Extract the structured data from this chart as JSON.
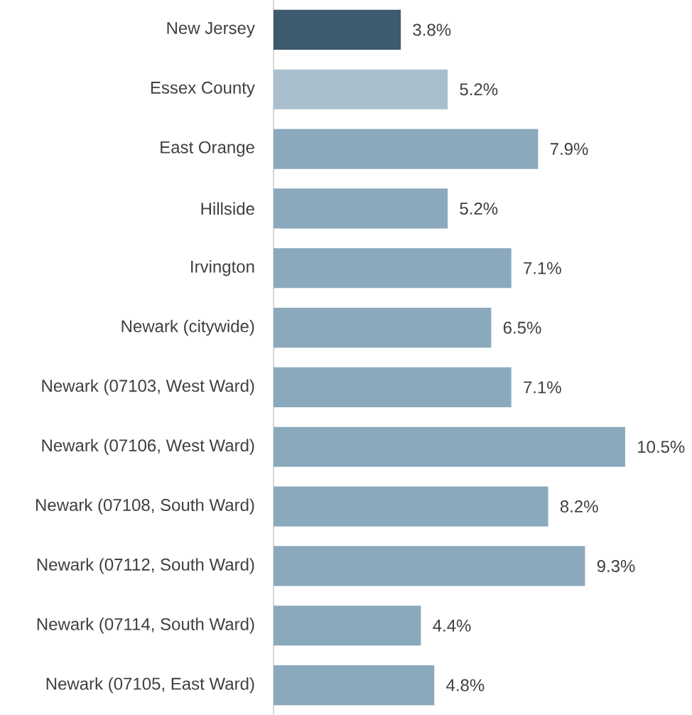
{
  "chart_data": {
    "type": "bar",
    "orientation": "horizontal",
    "categories": [
      "New Jersey",
      "Essex County",
      "East Orange",
      "Hillside",
      "Irvington",
      "Newark (citywide)",
      "Newark (07103, West Ward)",
      "Newark (07106, West Ward)",
      "Newark (07108, South Ward)",
      "Newark (07112, South Ward)",
      "Newark (07114, South Ward)",
      "Newark (07105, East Ward)"
    ],
    "values": [
      3.8,
      5.2,
      7.9,
      5.2,
      7.1,
      6.5,
      7.1,
      10.5,
      8.2,
      9.3,
      4.4,
      4.8
    ],
    "value_labels": [
      "3.8%",
      "5.2%",
      "7.9%",
      "5.2%",
      "7.1%",
      "6.5%",
      "7.1%",
      "10.5%",
      "8.2%",
      "9.3%",
      "4.4%",
      "4.8%"
    ],
    "colors": [
      "#3d5a6e",
      "#a9bfcd",
      "#8aa9bd",
      "#8aa9bd",
      "#8aa9bd",
      "#8aa9bd",
      "#8aa9bd",
      "#8aa9bd",
      "#8aa9bd",
      "#8aa9bd",
      "#8aa9bd",
      "#8aa9bd"
    ]
  }
}
